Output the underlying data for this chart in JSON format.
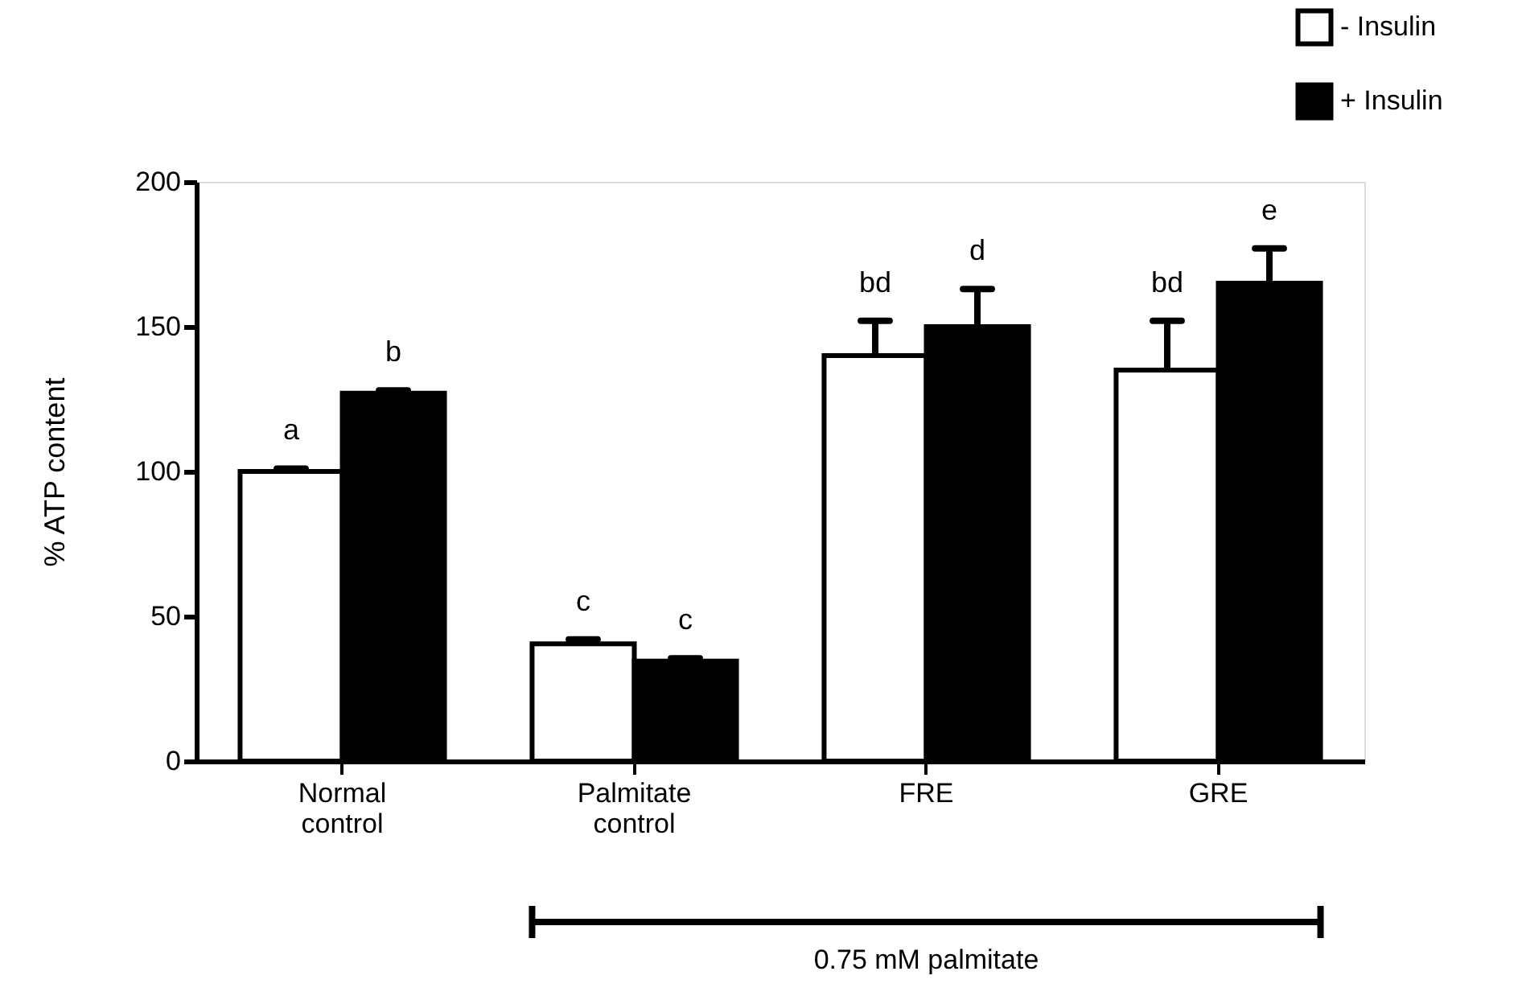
{
  "chart_data": {
    "type": "bar",
    "ylabel": "% ATP content",
    "categories": [
      "Normal control",
      "Palmitate control",
      "FRE",
      "GRE"
    ],
    "series": [
      {
        "name": "- Insulin",
        "color": "#ffffff",
        "values": [
          100,
          40.5,
          140,
          135
        ],
        "errors": [
          [
            100,
            101
          ],
          [
            40.5,
            42
          ],
          [
            140,
            152
          ],
          [
            135,
            152
          ]
        ]
      },
      {
        "name": "+ Insulin",
        "color": "#000000",
        "values": [
          127,
          34.5,
          150,
          165
        ],
        "errors": [
          [
            127,
            128
          ],
          [
            34.5,
            35.5
          ],
          [
            150,
            163
          ],
          [
            165,
            177
          ]
        ]
      }
    ],
    "ylim": [
      0,
      200
    ],
    "yticks": [
      0,
      50,
      100,
      150,
      200
    ],
    "grid": false,
    "legend": "top right",
    "annotations": [
      "a",
      "b",
      "c",
      "c",
      "bd",
      "d",
      "bd",
      "e",
      "0.75 mM palmitate"
    ]
  }
}
